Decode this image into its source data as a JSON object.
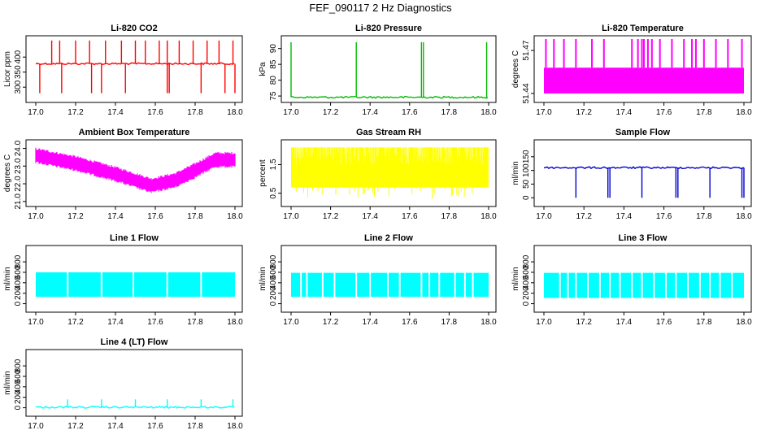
{
  "figure_title": "FEF_090117  2 Hz Diagnostics",
  "chart_data": [
    {
      "type": "line",
      "title": "Li-820 CO2",
      "ylabel": "Licor ppm",
      "color": "#ff0000",
      "xlim": [
        17.0,
        18.0
      ],
      "ylim": [
        260,
        460
      ],
      "xticks": [
        "17.0",
        "17.2",
        "17.4",
        "17.6",
        "17.8",
        "18.0"
      ],
      "yticks": [
        {
          "v": 300,
          "label": "300"
        },
        {
          "v": 350,
          "label": "350"
        },
        {
          "v": 400,
          "label": "400"
        }
      ],
      "baseline": 378,
      "spikes_up": [
        17.08,
        17.12,
        17.2,
        17.27,
        17.35,
        17.43,
        17.5,
        17.55,
        17.62,
        17.66,
        17.72,
        17.79,
        17.86,
        17.92,
        17.99
      ],
      "spike_up_to": 455,
      "spikes_down": [
        17.02,
        17.13,
        17.28,
        17.33,
        17.45,
        17.66,
        17.67,
        17.83,
        17.95,
        18.0
      ],
      "spike_down_to": 280
    },
    {
      "type": "line",
      "title": "Li-820 Pressure",
      "ylabel": "kPa",
      "color": "#00bb00",
      "xlim": [
        17.0,
        18.0
      ],
      "ylim": [
        74,
        93
      ],
      "xticks": [
        "17.0",
        "17.2",
        "17.4",
        "17.6",
        "17.8",
        "18.0"
      ],
      "yticks": [
        {
          "v": 75,
          "label": "75"
        },
        {
          "v": 80,
          "label": "80"
        },
        {
          "v": 85,
          "label": "85"
        },
        {
          "v": 90,
          "label": "90"
        }
      ],
      "baseline": 74.6,
      "spikes_up": [
        17.0,
        17.33,
        17.66,
        17.67,
        17.99
      ],
      "spike_up_to": 92
    },
    {
      "type": "area",
      "title": "Li-820 Temperature",
      "ylabel": "degrees C",
      "color": "#ff00ff",
      "xlim": [
        17.0,
        18.0
      ],
      "ylim": [
        51.436,
        51.478
      ],
      "xticks": [
        "17.0",
        "17.2",
        "17.4",
        "17.6",
        "17.8",
        "18.0"
      ],
      "yticks": [
        {
          "v": 51.44,
          "label": "51.44"
        },
        {
          "v": 51.47,
          "label": "51.47"
        }
      ],
      "band": [
        51.44,
        51.458
      ],
      "spikes_up": [
        17.01,
        17.05,
        17.1,
        17.16,
        17.24,
        17.3,
        17.44,
        17.47,
        17.49,
        17.5,
        17.52,
        17.54,
        17.58,
        17.64,
        17.7,
        17.74,
        17.76,
        17.8,
        17.86,
        17.92,
        17.99
      ],
      "spike_up_to": 51.478
    },
    {
      "type": "area",
      "title": "Ambient Box Temperature",
      "ylabel": "degrees C",
      "color": "#ff00ff",
      "xlim": [
        17.0,
        18.0
      ],
      "ylim": [
        20.9,
        24.3
      ],
      "xticks": [
        "17.0",
        "17.2",
        "17.4",
        "17.6",
        "17.8",
        "18.0"
      ],
      "yticks": [
        {
          "v": 21.0,
          "label": "21.0"
        },
        {
          "v": 22.0,
          "label": "22.0"
        },
        {
          "v": 23.0,
          "label": "23.0"
        },
        {
          "v": 24.0,
          "label": "24.0"
        }
      ],
      "trend_x": [
        17.0,
        17.2,
        17.4,
        17.58,
        17.7,
        17.8,
        17.9,
        18.0
      ],
      "trend_y": [
        23.6,
        23.15,
        22.55,
        21.9,
        22.2,
        22.75,
        23.35,
        23.35
      ],
      "amplitude": 0.45
    },
    {
      "type": "area",
      "title": "Gas Stream RH",
      "ylabel": "percent",
      "color": "#ffff00",
      "xlim": [
        17.0,
        18.0
      ],
      "ylim": [
        0.15,
        2.25
      ],
      "xticks": [
        "17.0",
        "17.2",
        "17.4",
        "17.6",
        "17.8",
        "18.0"
      ],
      "yticks": [
        {
          "v": 0.5,
          "label": "0.5"
        },
        {
          "v": 1.5,
          "label": "1.5"
        }
      ],
      "band": [
        0.7,
        2.1
      ],
      "dips_to": 0.3
    },
    {
      "type": "line",
      "title": "Sample Flow",
      "ylabel": "ml/min",
      "color": "#0000cc",
      "xlim": [
        17.0,
        18.0
      ],
      "ylim": [
        -20,
        200
      ],
      "xticks": [
        "17.0",
        "17.2",
        "17.4",
        "17.6",
        "17.8",
        "18.0"
      ],
      "yticks": [
        {
          "v": 0,
          "label": "0"
        },
        {
          "v": 50,
          "label": "50"
        },
        {
          "v": 100,
          "label": "100"
        },
        {
          "v": 150,
          "label": "150"
        }
      ],
      "baseline": 110,
      "spikes_down": [
        17.16,
        17.32,
        17.33,
        17.49,
        17.66,
        17.67,
        17.83,
        17.99,
        18.0
      ],
      "spike_down_to": 0
    },
    {
      "type": "area",
      "title": "Line 1 Flow",
      "ylabel": "ml/min",
      "color": "#00ffff",
      "xlim": [
        17.0,
        18.0
      ],
      "ylim": [
        -100,
        1050
      ],
      "xticks": [
        "17.0",
        "17.2",
        "17.4",
        "17.6",
        "17.8",
        "18.0"
      ],
      "yticks": [
        {
          "v": 0,
          "label": "0"
        },
        {
          "v": 200,
          "label": "200"
        },
        {
          "v": 400,
          "label": "400"
        },
        {
          "v": 600,
          "label": "600"
        },
        {
          "v": 800,
          "label": "800"
        }
      ],
      "band": [
        130,
        600
      ],
      "gaps": [
        17.16,
        17.33,
        17.49,
        17.66,
        17.83
      ]
    },
    {
      "type": "area",
      "title": "Line 2 Flow",
      "ylabel": "ml/min",
      "color": "#00ffff",
      "xlim": [
        17.0,
        18.0
      ],
      "ylim": [
        -100,
        1050
      ],
      "xticks": [
        "17.0",
        "17.2",
        "17.4",
        "17.6",
        "17.8",
        "18.0"
      ],
      "yticks": [
        {
          "v": 0,
          "label": "0"
        },
        {
          "v": 200,
          "label": "200"
        },
        {
          "v": 400,
          "label": "400"
        },
        {
          "v": 600,
          "label": "600"
        },
        {
          "v": 800,
          "label": "800"
        }
      ],
      "band": [
        130,
        590
      ],
      "gaps": [
        17.05,
        17.08,
        17.16,
        17.22,
        17.33,
        17.4,
        17.49,
        17.55,
        17.66,
        17.7,
        17.75,
        17.83,
        17.88,
        17.92
      ]
    },
    {
      "type": "area",
      "title": "Line 3 Flow",
      "ylabel": "ml/min",
      "color": "#00ffff",
      "xlim": [
        17.0,
        18.0
      ],
      "ylim": [
        -100,
        1050
      ],
      "xticks": [
        "17.0",
        "17.2",
        "17.4",
        "17.6",
        "17.8",
        "18.0"
      ],
      "yticks": [
        {
          "v": 0,
          "label": "0"
        },
        {
          "v": 200,
          "label": "200"
        },
        {
          "v": 400,
          "label": "400"
        },
        {
          "v": 600,
          "label": "600"
        },
        {
          "v": 800,
          "label": "800"
        }
      ],
      "band": [
        110,
        590
      ],
      "gaps": [
        17.08,
        17.12,
        17.16,
        17.22,
        17.28,
        17.33,
        17.38,
        17.44,
        17.49,
        17.55,
        17.61,
        17.66,
        17.72,
        17.78,
        17.83,
        17.88,
        17.94
      ]
    },
    {
      "type": "line",
      "title": "Line 4 (LT) Flow",
      "ylabel": "ml/min",
      "color": "#00ffff",
      "xlim": [
        17.0,
        18.0
      ],
      "ylim": [
        -100,
        1050
      ],
      "xticks": [
        "17.0",
        "17.2",
        "17.4",
        "17.6",
        "17.8",
        "18.0"
      ],
      "yticks": [
        {
          "v": 0,
          "label": "0"
        },
        {
          "v": 200,
          "label": "200"
        },
        {
          "v": 400,
          "label": "400"
        },
        {
          "v": 600,
          "label": "600"
        },
        {
          "v": 800,
          "label": "800"
        }
      ],
      "baseline": 10,
      "spikes_up": [
        17.16,
        17.33,
        17.5,
        17.66,
        17.83,
        17.99
      ],
      "spike_up_to": 160
    }
  ]
}
